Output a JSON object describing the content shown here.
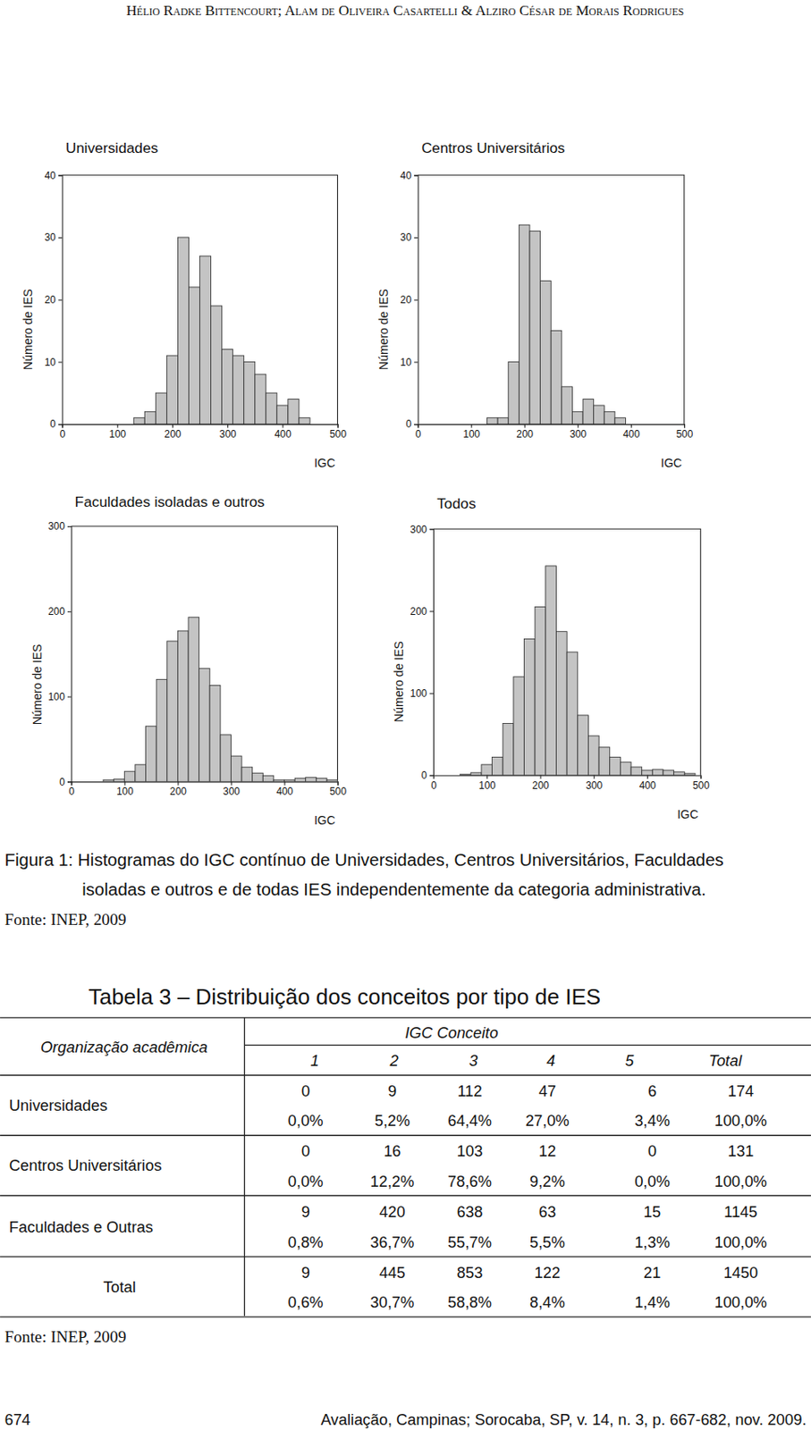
{
  "header": "Hélio Radke Bittencourt; Alam de Oliveira Casartelli & Alziro César de Morais Rodrigues",
  "chart_data": [
    {
      "type": "histogram",
      "title": "Universidades",
      "x_label": "IGC",
      "y_label": "Número de IES",
      "bins": [
        130,
        150,
        170,
        190,
        210,
        230,
        250,
        270,
        290,
        310,
        330,
        350,
        370,
        390,
        410,
        430,
        450
      ],
      "values": [
        1,
        2,
        5,
        11,
        30,
        22,
        27,
        19,
        12,
        11,
        10,
        8,
        5,
        3,
        4,
        1
      ],
      "color": "#c4c4c4",
      "xlim": [
        0,
        500
      ],
      "xticks": [
        0,
        100,
        200,
        300,
        400,
        500
      ],
      "ylim": [
        0,
        40
      ],
      "yticks": [
        0,
        10,
        20,
        30,
        40
      ]
    },
    {
      "type": "histogram",
      "title": "Centros Universitários",
      "x_label": "IGC",
      "y_label": "Número de IES",
      "bins": [
        130,
        150,
        170,
        190,
        210,
        230,
        250,
        270,
        290,
        310,
        330,
        350,
        370,
        390
      ],
      "values": [
        1,
        1,
        10,
        32,
        31,
        23,
        15,
        6,
        2,
        4,
        3,
        2,
        1
      ],
      "color": "#c4c4c4",
      "xlim": [
        0,
        500
      ],
      "xticks": [
        0,
        100,
        200,
        300,
        400,
        500
      ],
      "ylim": [
        0,
        40
      ],
      "yticks": [
        0,
        10,
        20,
        30,
        40
      ]
    },
    {
      "type": "histogram",
      "title": "Faculdades isoladas e outros",
      "x_label": "IGC",
      "y_label": "Número de IES",
      "bins": [
        60,
        80,
        100,
        120,
        140,
        160,
        180,
        200,
        220,
        240,
        260,
        280,
        300,
        320,
        340,
        360,
        380,
        400,
        420,
        440,
        460,
        480,
        500
      ],
      "values": [
        2,
        3,
        12,
        20,
        65,
        120,
        165,
        177,
        193,
        133,
        113,
        55,
        30,
        17,
        10,
        7,
        2,
        2,
        4,
        5,
        4,
        2
      ],
      "color": "#c4c4c4",
      "xlim": [
        0,
        500
      ],
      "xticks": [
        0,
        100,
        200,
        300,
        400,
        500
      ],
      "ylim": [
        0,
        300
      ],
      "yticks": [
        0,
        100,
        200,
        300
      ]
    },
    {
      "type": "histogram",
      "title": "Todos",
      "x_label": "IGC",
      "y_label": "Número de IES",
      "bins": [
        50,
        70,
        90,
        110,
        130,
        150,
        170,
        190,
        210,
        230,
        250,
        270,
        290,
        310,
        330,
        350,
        370,
        390,
        410,
        430,
        450,
        470,
        490
      ],
      "values": [
        1,
        3,
        13,
        22,
        63,
        120,
        166,
        205,
        255,
        175,
        150,
        73,
        48,
        34,
        22,
        16,
        10,
        6,
        7,
        6,
        4,
        2
      ],
      "color": "#c4c4c4",
      "xlim": [
        0,
        500
      ],
      "xticks": [
        0,
        100,
        200,
        300,
        400,
        500
      ],
      "ylim": [
        0,
        300
      ],
      "yticks": [
        0,
        100,
        200,
        300
      ]
    }
  ],
  "figure": {
    "caption": [
      "Figura 1: Histogramas do IGC contínuo de Universidades, Centros Universitários, Faculdades",
      "isoladas e outros e de todas IES independentemente da categoria administrativa."
    ],
    "source": "Fonte: INEP, 2009"
  },
  "table": {
    "title": "Tabela 3 – Distribuição dos conceitos por tipo de IES",
    "row_header": "Organização acadêmica",
    "column_group": "IGC Conceito",
    "columns": [
      "1",
      "2",
      "3",
      "4",
      "5",
      "Total"
    ],
    "rows": [
      {
        "label": "Universidades",
        "counts": [
          0,
          9,
          112,
          47,
          6,
          174
        ],
        "percents": [
          "0,0%",
          "5,2%",
          "64,4%",
          "27,0%",
          "3,4%",
          "100,0%"
        ]
      },
      {
        "label": "Centros Universitários",
        "counts": [
          0,
          16,
          103,
          12,
          0,
          131
        ],
        "percents": [
          "0,0%",
          "12,2%",
          "78,6%",
          "9,2%",
          "0,0%",
          "100,0%"
        ]
      },
      {
        "label": "Faculdades e Outras",
        "counts": [
          9,
          420,
          638,
          63,
          15,
          1145
        ],
        "percents": [
          "0,8%",
          "36,7%",
          "55,7%",
          "5,5%",
          "1,3%",
          "100,0%"
        ]
      },
      {
        "label": "Total",
        "counts": [
          9,
          445,
          853,
          122,
          21,
          1450
        ],
        "percents": [
          "0,6%",
          "30,7%",
          "58,8%",
          "8,4%",
          "1,4%",
          "100,0%"
        ]
      }
    ],
    "source": "Fonte: INEP, 2009"
  },
  "footer": {
    "page": "674",
    "citation": "Avaliação, Campinas; Sorocaba, SP, v. 14, n. 3, p. 667-682, nov. 2009."
  }
}
